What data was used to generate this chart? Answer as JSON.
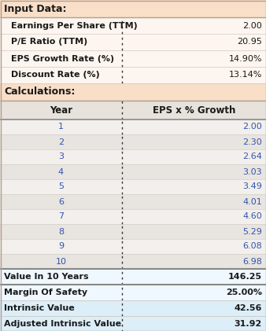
{
  "input_label": "Input Data:",
  "input_rows": [
    [
      "Earnings Per Share (TTM)",
      "2.00"
    ],
    [
      "P/E Ratio (TTM)",
      "20.95"
    ],
    [
      "EPS Growth Rate (%)",
      "14.90%"
    ],
    [
      "Discount Rate (%)",
      "13.14%"
    ]
  ],
  "calc_label": "Calculations:",
  "calc_header": [
    "Year",
    "EPS x % Growth"
  ],
  "calc_rows": [
    [
      "1",
      "2.00"
    ],
    [
      "2",
      "2.30"
    ],
    [
      "3",
      "2.64"
    ],
    [
      "4",
      "3.03"
    ],
    [
      "5",
      "3.49"
    ],
    [
      "6",
      "4.01"
    ],
    [
      "7",
      "4.60"
    ],
    [
      "8",
      "5.29"
    ],
    [
      "9",
      "6.08"
    ],
    [
      "10",
      "6.98"
    ]
  ],
  "summary_rows": [
    [
      "Value In 10 Years",
      "146.25"
    ],
    [
      "Margin Of Safety",
      "25.00%"
    ],
    [
      "Intrinsic Value",
      "42.56"
    ],
    [
      "Adjusted Intrinsic Value",
      "31.92"
    ]
  ],
  "bg_header": "#f9dfc8",
  "bg_input_row": "#fdf5ef",
  "bg_calc_col_header": "#e8e2dc",
  "bg_calc_row_odd": "#f2efec",
  "bg_calc_row_even": "#e8e4e0",
  "bg_summary_light": "#f0f8ff",
  "bg_summary_blue": "#dceef8",
  "text_dark": "#1a1a1a",
  "text_blue": "#3355aa",
  "border_outer": "#b0a090",
  "border_section": "#888888",
  "border_row": "#d0c8c0",
  "divider_color": "#333333",
  "col_split": 155
}
